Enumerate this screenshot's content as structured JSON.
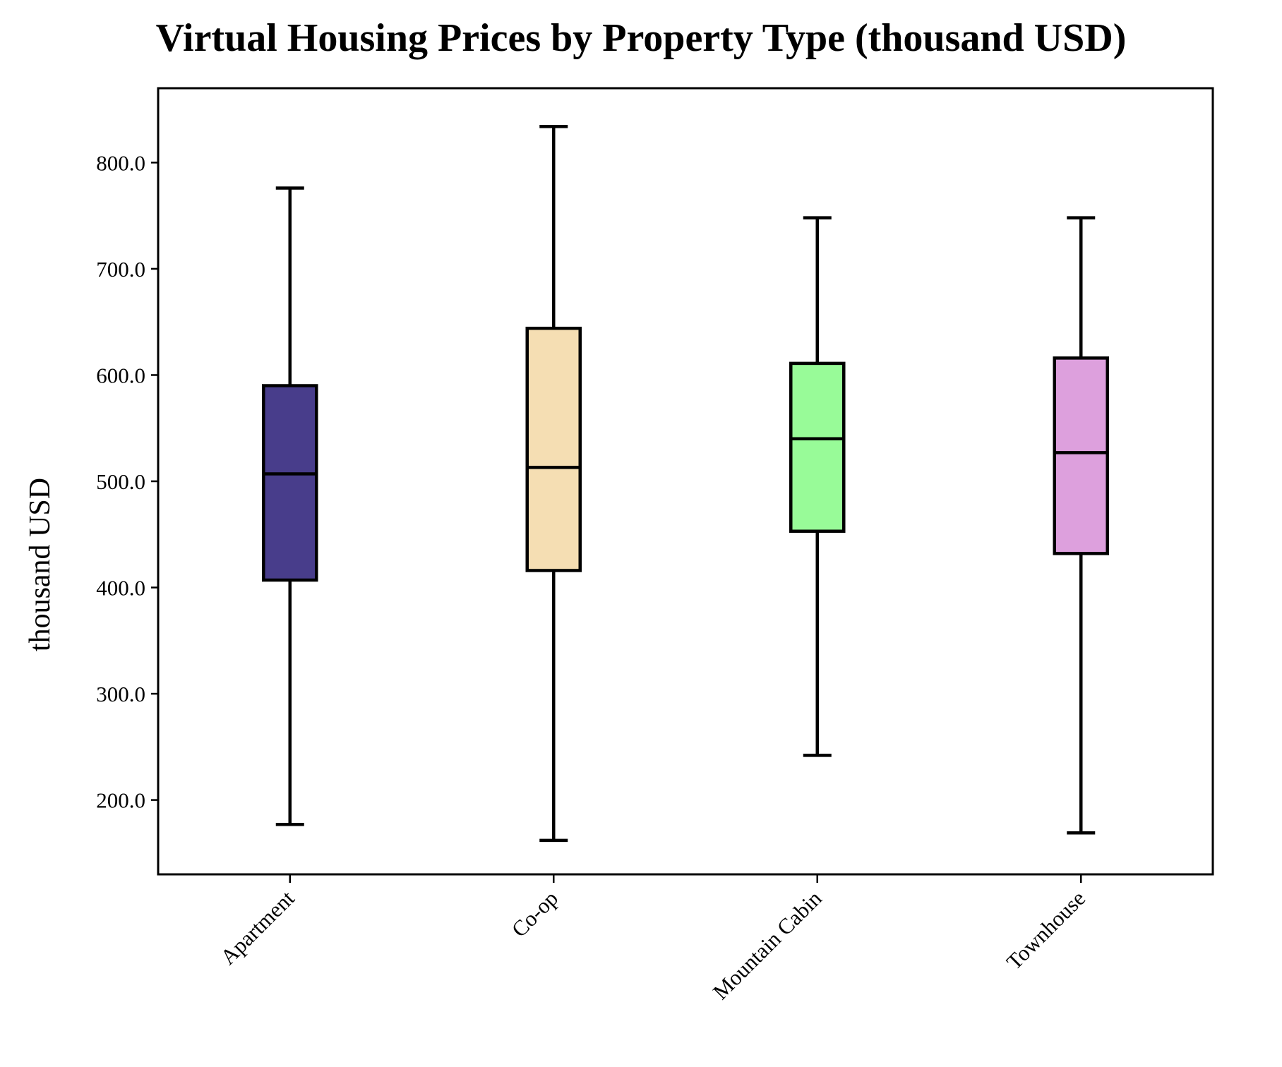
{
  "chart_data": {
    "type": "box",
    "title": "Virtual Housing Prices by Property Type (thousand USD)",
    "xlabel": "",
    "ylabel": "thousand USD",
    "ylim": [
      130,
      870
    ],
    "yticks": [
      200,
      300,
      400,
      500,
      600,
      700,
      800
    ],
    "ytick_labels": [
      "200.0",
      "300.0",
      "400.0",
      "500.0",
      "600.0",
      "700.0",
      "800.0"
    ],
    "grid": false,
    "categories": [
      "Apartment",
      "Co-op",
      "Mountain Cabin",
      "Townhouse"
    ],
    "boxes": [
      {
        "category": "Apartment",
        "whisker_low": 177,
        "q1": 407,
        "median": 507,
        "q3": 590,
        "whisker_high": 776,
        "color": "#483D8B"
      },
      {
        "category": "Co-op",
        "whisker_low": 162,
        "q1": 416,
        "median": 513,
        "q3": 644,
        "whisker_high": 834,
        "color": "#F5DEB3"
      },
      {
        "category": "Mountain Cabin",
        "whisker_low": 242,
        "q1": 453,
        "median": 540,
        "q3": 611,
        "whisker_high": 748,
        "color": "#98FB98"
      },
      {
        "category": "Townhouse",
        "whisker_low": 169,
        "q1": 432,
        "median": 527,
        "q3": 616,
        "whisker_high": 748,
        "color": "#DDA0DD"
      }
    ]
  }
}
